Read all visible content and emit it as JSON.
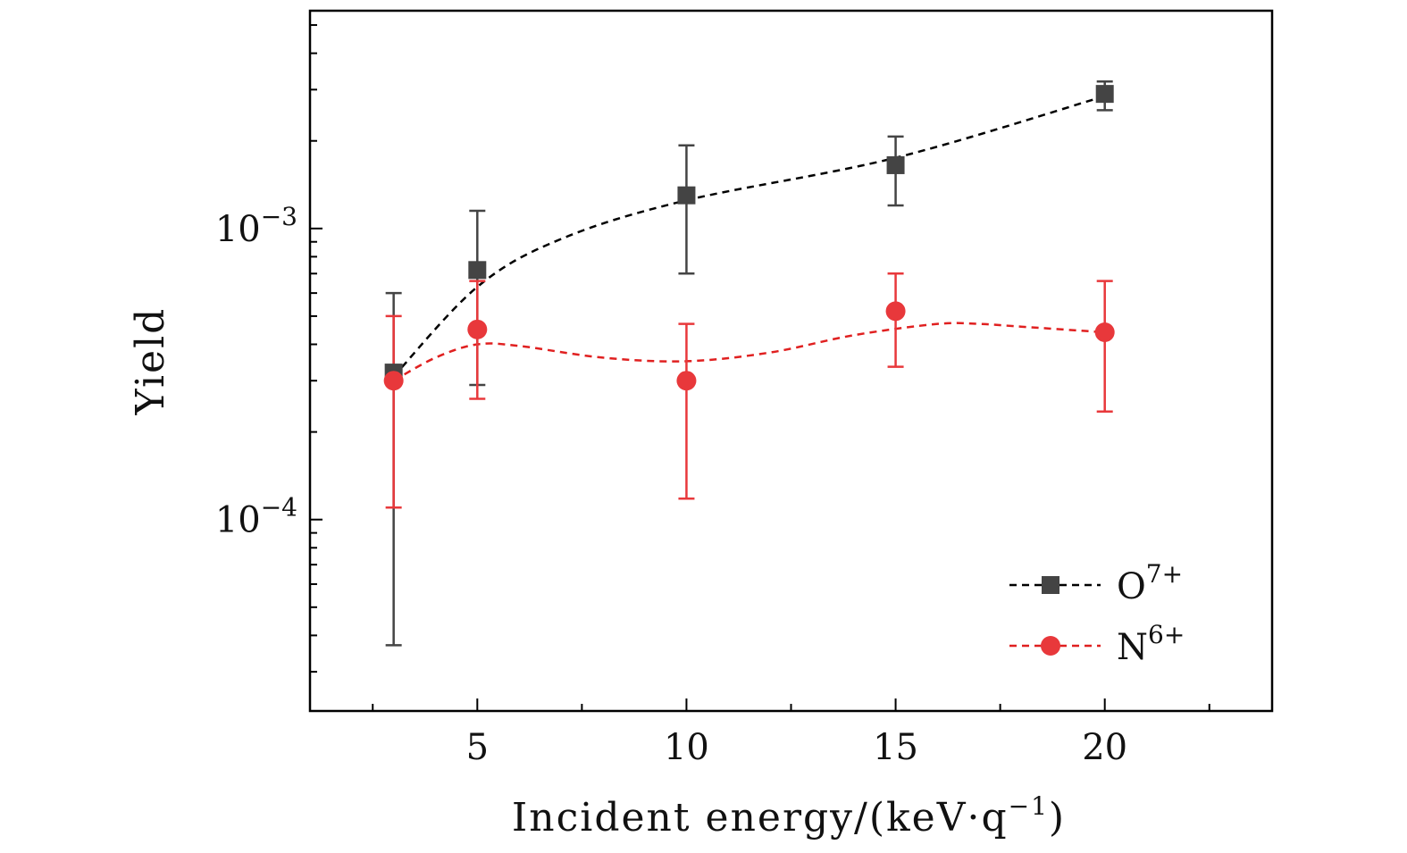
{
  "chart_data": {
    "type": "scatter",
    "title": "",
    "xlabel": "Incident energy/(keV·q",
    "xlabel_sup": "−1",
    "xlabel_close": ")",
    "ylabel": "Yield",
    "xlim": [
      1,
      24
    ],
    "ylim": [
      2.2e-05,
      0.0056
    ],
    "yscale": "log",
    "x_ticks": [
      5,
      10,
      15,
      20
    ],
    "x_tick_labels": [
      "5",
      "10",
      "15",
      "20"
    ],
    "x_minor_ticks": [
      2.5,
      7.5,
      12.5,
      17.5,
      22.5
    ],
    "y_ticks": [
      0.0001,
      0.001
    ],
    "y_tick_labels": [
      {
        "base": "10",
        "exp": "−4"
      },
      {
        "base": "10",
        "exp": "−3"
      }
    ],
    "y_minor_ticks": [
      3e-05,
      4e-05,
      5e-05,
      6e-05,
      7e-05,
      8e-05,
      9e-05,
      0.0002,
      0.0003,
      0.0004,
      0.0005,
      0.0006,
      0.0007,
      0.0008,
      0.0009,
      0.002,
      0.003,
      0.004,
      0.005
    ],
    "legend_position": "bottom-right",
    "series": [
      {
        "name": "O",
        "name_sup": "7+",
        "marker": "square",
        "color": "#444444",
        "fit_color": "#000000",
        "x": [
          3,
          5,
          10,
          15,
          20
        ],
        "y": [
          0.00032,
          0.00072,
          0.0013,
          0.00165,
          0.0029
        ],
        "err_low": [
          3.7e-05,
          0.00029,
          0.0007,
          0.0012,
          0.00255
        ],
        "err_high": [
          0.0006,
          0.00115,
          0.00193,
          0.00207,
          0.0032
        ],
        "fit_x": [
          3,
          5,
          7,
          10,
          15,
          20
        ],
        "fit_y": [
          0.00031,
          0.00063,
          0.00092,
          0.00125,
          0.00175,
          0.00285
        ]
      },
      {
        "name": "N",
        "name_sup": "6+",
        "marker": "circle",
        "color": "#e8383b",
        "fit_color": "#e02020",
        "x": [
          3,
          5,
          10,
          15,
          20
        ],
        "y": [
          0.0003,
          0.00045,
          0.0003,
          0.00052,
          0.00044
        ],
        "err_low": [
          0.00011,
          0.00026,
          0.000118,
          0.000335,
          0.000235
        ],
        "err_high": [
          0.0005,
          0.00066,
          0.00047,
          0.0007,
          0.00066
        ],
        "fit_x": [
          3,
          4,
          5,
          6,
          8,
          10,
          12,
          14,
          16,
          17,
          18,
          20
        ],
        "fit_y": [
          0.0003,
          0.00036,
          0.0004,
          0.000395,
          0.00036,
          0.00035,
          0.000375,
          0.00043,
          0.00047,
          0.00047,
          0.00046,
          0.00044
        ]
      }
    ]
  }
}
